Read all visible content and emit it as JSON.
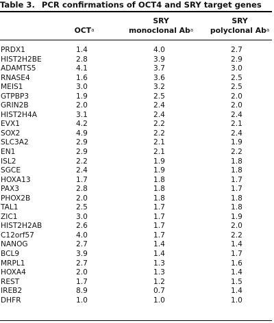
{
  "table": {
    "label": "Table 3.",
    "title": "PCR confirmations of OCT4 and SRY target genes",
    "headers": {
      "oct": "OCT",
      "mono_line1": "SRY",
      "mono_line2": "monoclonal Ab",
      "poly_line1": "SRY",
      "poly_line2": "polyclonal Ab",
      "footnote_marker": "a"
    },
    "rows": [
      {
        "gene": "PRDX1",
        "oct": "1.4",
        "mono": "4.0",
        "poly": "2.7"
      },
      {
        "gene": "HIST2H2BE",
        "oct": "2.8",
        "mono": "3.9",
        "poly": "2.9"
      },
      {
        "gene": "ADAMTS5",
        "oct": "4.1",
        "mono": "3.7",
        "poly": "3.0"
      },
      {
        "gene": "RNASE4",
        "oct": "1.6",
        "mono": "3.6",
        "poly": "2.5"
      },
      {
        "gene": "MEIS1",
        "oct": "3.0",
        "mono": "3.2",
        "poly": "2.5"
      },
      {
        "gene": "GTPBP3",
        "oct": "1.9",
        "mono": "2.5",
        "poly": "2.0"
      },
      {
        "gene": "GRIN2B",
        "oct": "2.0",
        "mono": "2.4",
        "poly": "2.0"
      },
      {
        "gene": "HIST2H4A",
        "oct": "3.1",
        "mono": "2.4",
        "poly": "2.4"
      },
      {
        "gene": "EVX1",
        "oct": "4.2",
        "mono": "2.2",
        "poly": "2.1"
      },
      {
        "gene": "SOX2",
        "oct": "4.9",
        "mono": "2.2",
        "poly": "2.4"
      },
      {
        "gene": "SLC3A2",
        "oct": "2.9",
        "mono": "2.1",
        "poly": "1.9"
      },
      {
        "gene": "EN1",
        "oct": "2.9",
        "mono": "2.1",
        "poly": "2.2"
      },
      {
        "gene": "ISL2",
        "oct": "2.2",
        "mono": "1.9",
        "poly": "1.8"
      },
      {
        "gene": "SGCE",
        "oct": "2.4",
        "mono": "1.9",
        "poly": "1.8"
      },
      {
        "gene": "HOXA13",
        "oct": "1.7",
        "mono": "1.8",
        "poly": "1.7"
      },
      {
        "gene": "PAX3",
        "oct": "2.8",
        "mono": "1.8",
        "poly": "1.7"
      },
      {
        "gene": "PHOX2B",
        "oct": "2.0",
        "mono": "1.8",
        "poly": "1.8"
      },
      {
        "gene": "TAL1",
        "oct": "2.5",
        "mono": "1.7",
        "poly": "1.8"
      },
      {
        "gene": "ZIC1",
        "oct": "3.0",
        "mono": "1.7",
        "poly": "1.9"
      },
      {
        "gene": "HIST2H2AB",
        "oct": "2.6",
        "mono": "1.7",
        "poly": "2.0"
      },
      {
        "gene": "C12orf57",
        "oct": "4.0",
        "mono": "1.7",
        "poly": "2.2"
      },
      {
        "gene": "NANOG",
        "oct": "2.7",
        "mono": "1.4",
        "poly": "1.4"
      },
      {
        "gene": "BCL9",
        "oct": "3.9",
        "mono": "1.4",
        "poly": "1.7"
      },
      {
        "gene": "MRPL1",
        "oct": "2.7",
        "mono": "1.3",
        "poly": "1.6"
      },
      {
        "gene": "HOXA4",
        "oct": "2.0",
        "mono": "1.3",
        "poly": "1.4"
      },
      {
        "gene": "REST",
        "oct": "1.7",
        "mono": "1.2",
        "poly": "1.5"
      },
      {
        "gene": "IREB2",
        "oct": "8.9",
        "mono": "0.7",
        "poly": "1.4"
      },
      {
        "gene": "DHFR",
        "oct": "1.0",
        "mono": "1.0",
        "poly": "1.0"
      }
    ]
  }
}
